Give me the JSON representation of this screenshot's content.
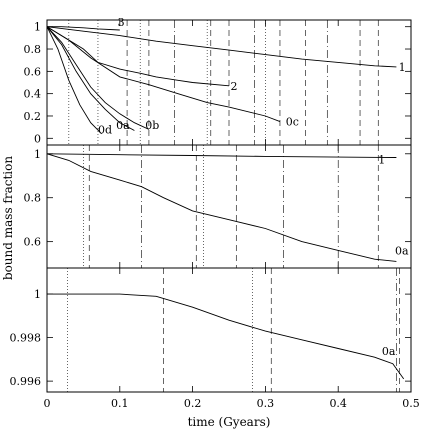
{
  "chart_data": {
    "type": "line",
    "xlabel": "time (Gyears)",
    "ylabel": "bound mass fraction",
    "xlim": [
      0,
      0.5
    ],
    "x_ticks": [
      "0",
      "0.1",
      "0.2",
      "0.3",
      "0.4",
      "0.5"
    ],
    "grid": false,
    "panels": [
      {
        "id": "top",
        "ylim": [
          -0.06,
          1.06
        ],
        "y_ticks": [
          "0",
          "0.2",
          "0.4",
          "0.6",
          "0.8",
          "1"
        ],
        "series": [
          {
            "name": "1",
            "x": [
              0,
              0.05,
              0.1,
              0.15,
              0.2,
              0.25,
              0.3,
              0.35,
              0.4,
              0.45,
              0.48
            ],
            "y": [
              1.0,
              0.96,
              0.92,
              0.87,
              0.83,
              0.79,
              0.75,
              0.71,
              0.68,
              0.65,
              0.64
            ]
          },
          {
            "name": "2",
            "x": [
              0,
              0.02,
              0.05,
              0.07,
              0.1,
              0.13,
              0.15,
              0.18,
              0.2,
              0.25
            ],
            "y": [
              1.0,
              0.92,
              0.8,
              0.68,
              0.62,
              0.58,
              0.55,
              0.52,
              0.5,
              0.47
            ]
          },
          {
            "name": "3",
            "x": [
              0,
              0.02,
              0.05,
              0.07,
              0.1
            ],
            "y": [
              1.0,
              1.0,
              0.99,
              0.98,
              0.97
            ]
          },
          {
            "name": "0c",
            "x": [
              0,
              0.03,
              0.06,
              0.1,
              0.14,
              0.18,
              0.22,
              0.25,
              0.3,
              0.32
            ],
            "y": [
              1.0,
              0.88,
              0.72,
              0.55,
              0.48,
              0.4,
              0.32,
              0.28,
              0.2,
              0.15
            ]
          },
          {
            "name": "0b",
            "x": [
              0,
              0.02,
              0.04,
              0.06,
              0.08,
              0.1,
              0.12,
              0.14
            ],
            "y": [
              1.0,
              0.86,
              0.66,
              0.46,
              0.32,
              0.22,
              0.14,
              0.08
            ]
          },
          {
            "name": "0a",
            "x": [
              0,
              0.02,
              0.04,
              0.06,
              0.08,
              0.1,
              0.12
            ],
            "y": [
              1.0,
              0.84,
              0.6,
              0.4,
              0.26,
              0.14,
              0.07
            ]
          },
          {
            "name": "0d",
            "x": [
              0,
              0.015,
              0.03,
              0.045,
              0.06,
              0.075
            ],
            "y": [
              1.0,
              0.8,
              0.52,
              0.3,
              0.14,
              0.04
            ]
          }
        ],
        "labels": [
          {
            "text": "3",
            "x": 0.097,
            "y": 1.04
          },
          {
            "text": "1",
            "x": 0.483,
            "y": 0.64
          },
          {
            "text": "2",
            "x": 0.252,
            "y": 0.47
          },
          {
            "text": "0c",
            "x": 0.328,
            "y": 0.15
          },
          {
            "text": "0a",
            "x": 0.095,
            "y": 0.12
          },
          {
            "text": "0b",
            "x": 0.135,
            "y": 0.12
          },
          {
            "text": "0d",
            "x": 0.07,
            "y": 0.08
          }
        ],
        "vlines": [
          {
            "x": 0.03,
            "style": "dotted"
          },
          {
            "x": 0.07,
            "style": "dotted"
          },
          {
            "x": 0.11,
            "style": "dashed"
          },
          {
            "x": 0.128,
            "style": "dotted"
          },
          {
            "x": 0.14,
            "style": "dashed"
          },
          {
            "x": 0.175,
            "style": "dashdot"
          },
          {
            "x": 0.22,
            "style": "dotted"
          },
          {
            "x": 0.225,
            "style": "dashed"
          },
          {
            "x": 0.25,
            "style": "dashed"
          },
          {
            "x": 0.285,
            "style": "dashdot"
          },
          {
            "x": 0.3,
            "style": "dotted"
          },
          {
            "x": 0.32,
            "style": "dashed"
          },
          {
            "x": 0.355,
            "style": "dashed"
          },
          {
            "x": 0.385,
            "style": "dashdot"
          },
          {
            "x": 0.43,
            "style": "dashed"
          },
          {
            "x": 0.455,
            "style": "dashed"
          }
        ]
      },
      {
        "id": "middle",
        "ylim": [
          0.48,
          1.04
        ],
        "y_ticks": [
          "0.6",
          "0.8",
          "1"
        ],
        "y_tick_values": [
          0.6,
          0.8,
          1.0
        ],
        "series": [
          {
            "name": "1",
            "x": [
              0,
              0.1,
              0.2,
              0.3,
              0.4,
              0.48
            ],
            "y": [
              1.0,
              0.996,
              0.992,
              0.988,
              0.985,
              0.983
            ]
          },
          {
            "name": "0a",
            "x": [
              0,
              0.03,
              0.06,
              0.1,
              0.13,
              0.16,
              0.2,
              0.25,
              0.3,
              0.35,
              0.4,
              0.45,
              0.48
            ],
            "y": [
              1.0,
              0.97,
              0.92,
              0.88,
              0.85,
              0.8,
              0.74,
              0.7,
              0.66,
              0.6,
              0.56,
              0.52,
              0.51
            ]
          }
        ],
        "labels": [
          {
            "text": "1",
            "x": 0.455,
            "y": 0.975
          },
          {
            "text": "0a",
            "x": 0.478,
            "y": 0.56
          }
        ],
        "vlines": [
          {
            "x": 0.05,
            "style": "dotted"
          },
          {
            "x": 0.058,
            "style": "dashed"
          },
          {
            "x": 0.13,
            "style": "dashdot"
          },
          {
            "x": 0.205,
            "style": "dashed"
          },
          {
            "x": 0.215,
            "style": "dotted"
          },
          {
            "x": 0.26,
            "style": "dashed"
          },
          {
            "x": 0.325,
            "style": "dashdot"
          },
          {
            "x": 0.4,
            "style": "dashdot"
          },
          {
            "x": 0.455,
            "style": "dashed"
          }
        ]
      },
      {
        "id": "bottom",
        "ylim": [
          0.9955,
          1.0012
        ],
        "y_ticks": [
          "0.996",
          "0.998",
          "1"
        ],
        "y_tick_values": [
          0.996,
          0.998,
          1.0
        ],
        "series": [
          {
            "name": "0a",
            "x": [
              0,
              0.1,
              0.15,
              0.2,
              0.25,
              0.3,
              0.35,
              0.4,
              0.45,
              0.475,
              0.49
            ],
            "y": [
              1.0,
              1.0,
              0.9999,
              0.9994,
              0.9988,
              0.9983,
              0.9979,
              0.9975,
              0.9971,
              0.9968,
              0.9961
            ]
          }
        ],
        "labels": [
          {
            "text": "0a",
            "x": 0.46,
            "y": 0.99738
          }
        ],
        "vlines": [
          {
            "x": 0.028,
            "style": "dotted"
          },
          {
            "x": 0.16,
            "style": "dashed"
          },
          {
            "x": 0.282,
            "style": "dotted"
          },
          {
            "x": 0.308,
            "style": "dashed"
          },
          {
            "x": 0.48,
            "style": "dashdot"
          },
          {
            "x": 0.484,
            "style": "dashed"
          }
        ]
      }
    ]
  }
}
